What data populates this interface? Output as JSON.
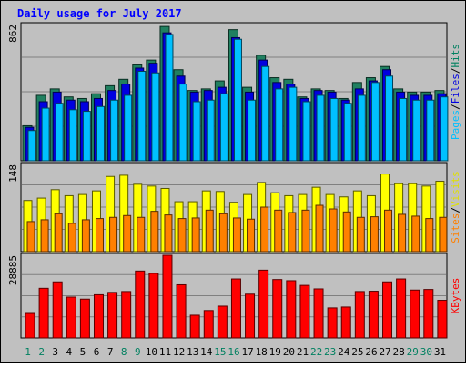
{
  "chart_data": {
    "type": "bar",
    "title": "Daily usage for July 2017",
    "categories": [
      "1",
      "2",
      "3",
      "4",
      "5",
      "6",
      "7",
      "8",
      "9",
      "10",
      "11",
      "12",
      "13",
      "14",
      "15",
      "16",
      "17",
      "18",
      "19",
      "20",
      "21",
      "22",
      "23",
      "24",
      "25",
      "26",
      "27",
      "28",
      "29",
      "30",
      "31"
    ],
    "weekend_days": [
      "1",
      "2",
      "8",
      "9",
      "15",
      "16",
      "22",
      "23",
      "29",
      "30"
    ],
    "panels": [
      {
        "name": "hits-files-pages",
        "ymax_label": "862",
        "ymax": 862,
        "axis_label_parts": [
          {
            "text": "Pages",
            "color": "#00c0ff"
          },
          {
            "text": "/",
            "color": "#000000"
          },
          {
            "text": "Files",
            "color": "#0000e0"
          },
          {
            "text": "/",
            "color": "#000000"
          },
          {
            "text": "Hits",
            "color": "#008060"
          }
        ],
        "series": [
          {
            "name": "Hits",
            "color": "#208060",
            "values": [
              230,
              420,
              460,
              410,
              400,
              430,
              480,
              520,
              610,
              640,
              850,
              580,
              450,
              460,
              510,
              830,
              470,
              670,
              530,
              520,
              410,
              460,
              450,
              400,
              500,
              530,
              600,
              460,
              440,
              440,
              450
            ]
          },
          {
            "name": "Files",
            "color": "#0000e0",
            "values": [
              220,
              380,
              440,
              390,
              380,
              400,
              450,
              490,
              590,
              620,
              810,
              540,
              440,
              450,
              470,
              780,
              440,
              640,
              500,
              490,
              400,
              450,
              440,
              390,
              460,
              510,
              580,
              440,
              420,
              420,
              430
            ]
          },
          {
            "name": "Pages",
            "color": "#00c0ff",
            "values": [
              200,
              340,
              370,
              330,
              320,
              350,
              390,
              420,
              570,
              560,
              800,
              490,
              380,
              390,
              430,
              770,
              390,
              600,
              460,
              470,
              380,
              420,
              400,
              370,
              420,
              500,
              540,
              400,
              390,
              390,
              410
            ]
          }
        ]
      },
      {
        "name": "visits-sites",
        "ymax_label": "148",
        "ymax": 148,
        "axis_label_parts": [
          {
            "text": "Sites",
            "color": "#ff8000"
          },
          {
            "text": "/",
            "color": "#000000"
          },
          {
            "text": "Visits",
            "color": "#e0e000"
          }
        ],
        "series": [
          {
            "name": "Visits",
            "color": "#ffff00",
            "values": [
              88,
              92,
              106,
              96,
              98,
              104,
              128,
              130,
              115,
              112,
              108,
              86,
              86,
              104,
              103,
              85,
              98,
              118,
              101,
              96,
              98,
              110,
              98,
              94,
              104,
              96,
              132,
              116,
              116,
              112,
              120
            ]
          },
          {
            "name": "Sites",
            "color": "#ff8000",
            "values": [
              53,
              56,
              66,
              50,
              56,
              58,
              60,
              63,
              60,
              70,
              64,
              58,
              59,
              72,
              66,
              59,
              57,
              77,
              72,
              68,
              72,
              80,
              74,
              69,
              60,
              61,
              72,
              65,
              62,
              58,
              60
            ]
          }
        ]
      },
      {
        "name": "kbytes",
        "ymax_label": "28885",
        "ymax": 28885,
        "axis_label_parts": [
          {
            "text": "KBytes",
            "color": "#ff0000"
          }
        ],
        "series": [
          {
            "name": "KBytes",
            "color": "#ff0000",
            "values": [
              9000,
              17600,
              19800,
              14600,
              13900,
              15400,
              16200,
              16500,
              23500,
              22700,
              28885,
              18800,
              8400,
              10000,
              11500,
              20800,
              15600,
              23800,
              20600,
              20200,
              18600,
              17400,
              10900,
              11200,
              16500,
              16600,
              19800,
              20800,
              17000,
              17200,
              13500
            ]
          }
        ]
      }
    ]
  }
}
